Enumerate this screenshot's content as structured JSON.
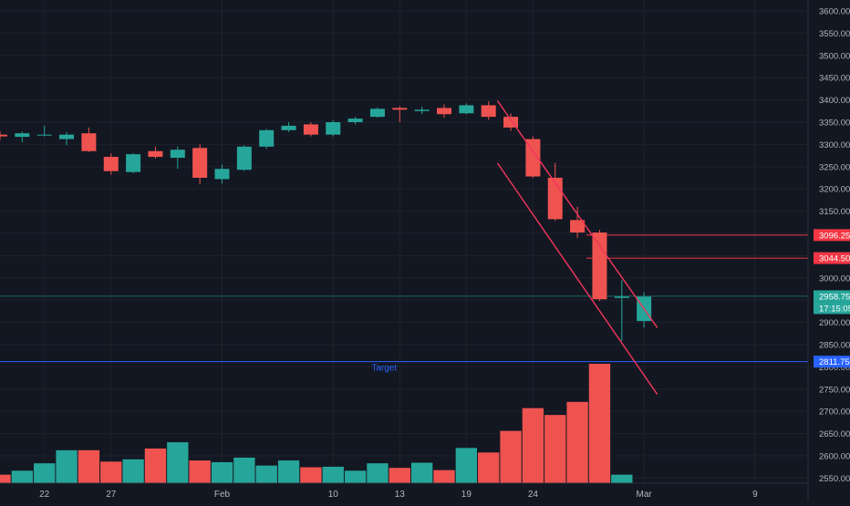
{
  "chart_data": {
    "type": "candlestick",
    "interval": "daily",
    "price_axis": {
      "min": 2550,
      "max": 3625,
      "ticks": [
        2550,
        2600,
        2650,
        2700,
        2750,
        2800,
        2850,
        2900,
        2950,
        3000,
        3050,
        3100,
        3150,
        3200,
        3250,
        3300,
        3350,
        3400,
        3450,
        3500,
        3550,
        3600
      ]
    },
    "time_axis": {
      "labels": [
        "22",
        "27",
        "Feb",
        "10",
        "13",
        "19",
        "24",
        "Mar",
        "9"
      ]
    },
    "candles": [
      {
        "o": 3322,
        "h": 3330,
        "l": 3310,
        "c": 3318
      },
      {
        "o": 3317,
        "h": 3328,
        "l": 3305,
        "c": 3325
      },
      {
        "o": 3320,
        "h": 3342,
        "l": 3318,
        "c": 3322
      },
      {
        "o": 3312,
        "h": 3328,
        "l": 3298,
        "c": 3322
      },
      {
        "o": 3325,
        "h": 3338,
        "l": 3283,
        "c": 3285
      },
      {
        "o": 3272,
        "h": 3280,
        "l": 3232,
        "c": 3240
      },
      {
        "o": 3238,
        "h": 3280,
        "l": 3235,
        "c": 3278
      },
      {
        "o": 3285,
        "h": 3295,
        "l": 3268,
        "c": 3272
      },
      {
        "o": 3270,
        "h": 3295,
        "l": 3245,
        "c": 3288
      },
      {
        "o": 3292,
        "h": 3300,
        "l": 3210,
        "c": 3225
      },
      {
        "o": 3222,
        "h": 3255,
        "l": 3212,
        "c": 3245
      },
      {
        "o": 3243,
        "h": 3298,
        "l": 3240,
        "c": 3295
      },
      {
        "o": 3295,
        "h": 3335,
        "l": 3290,
        "c": 3332
      },
      {
        "o": 3332,
        "h": 3350,
        "l": 3328,
        "c": 3342
      },
      {
        "o": 3345,
        "h": 3350,
        "l": 3318,
        "c": 3322
      },
      {
        "o": 3322,
        "h": 3355,
        "l": 3318,
        "c": 3350
      },
      {
        "o": 3350,
        "h": 3362,
        "l": 3345,
        "c": 3358
      },
      {
        "o": 3362,
        "h": 3383,
        "l": 3360,
        "c": 3380
      },
      {
        "o": 3382,
        "h": 3386,
        "l": 3350,
        "c": 3378
      },
      {
        "o": 3375,
        "h": 3385,
        "l": 3368,
        "c": 3378
      },
      {
        "o": 3382,
        "h": 3390,
        "l": 3360,
        "c": 3368
      },
      {
        "o": 3370,
        "h": 3392,
        "l": 3368,
        "c": 3388
      },
      {
        "o": 3388,
        "h": 3397,
        "l": 3355,
        "c": 3362
      },
      {
        "o": 3362,
        "h": 3370,
        "l": 3330,
        "c": 3338
      },
      {
        "o": 3312,
        "h": 3318,
        "l": 3225,
        "c": 3228
      },
      {
        "o": 3225,
        "h": 3258,
        "l": 3128,
        "c": 3132
      },
      {
        "o": 3130,
        "h": 3160,
        "l": 3090,
        "c": 3102
      },
      {
        "o": 3102,
        "h": 3108,
        "l": 2948,
        "c": 2952
      },
      {
        "o": 2955,
        "h": 2995,
        "l": 2858,
        "c": 2958
      },
      {
        "o": 2903,
        "h": 2968,
        "l": 2888,
        "c": 2958
      }
    ],
    "volume": [
      0.15,
      0.22,
      0.35,
      0.58,
      0.58,
      0.38,
      0.42,
      0.61,
      0.72,
      0.4,
      0.37,
      0.45,
      0.31,
      0.4,
      0.28,
      0.29,
      0.22,
      0.35,
      0.27,
      0.36,
      0.23,
      0.62,
      0.54,
      0.92,
      1.32,
      1.2,
      1.43,
      2.1,
      0.15,
      0.0
    ],
    "volume_max": 2.1,
    "channel_lines": [
      {
        "from": {
          "i": 22.4,
          "p": 3398
        },
        "to": {
          "i": 29.6,
          "p": 2888
        }
      },
      {
        "from": {
          "i": 22.4,
          "p": 3258
        },
        "to": {
          "i": 29.6,
          "p": 2738
        }
      }
    ],
    "levels": [
      {
        "price": 3096.25,
        "label": "3096.25",
        "color": "#f23645",
        "from_i": 26.4
      },
      {
        "price": 3044.5,
        "label": "3044.50",
        "color": "#f23645",
        "from_i": 26.4
      },
      {
        "price": 2958.75,
        "label": "2958.75",
        "sublabel": "17:15:05",
        "color": "#26a69a",
        "from_i": -1,
        "style": "current"
      },
      {
        "price": 2811.75,
        "label": "2811.75",
        "color": "#2962ff",
        "from_i": -1
      }
    ],
    "annotations": [
      {
        "text": "Target",
        "i": 17.3,
        "p": 2792
      }
    ],
    "colors": {
      "background": "#131722",
      "grid": "#1e222d",
      "up": "#26a69a",
      "down": "#ef5350",
      "axis_text": "#b2b5be",
      "channel": "#f2365b"
    }
  }
}
